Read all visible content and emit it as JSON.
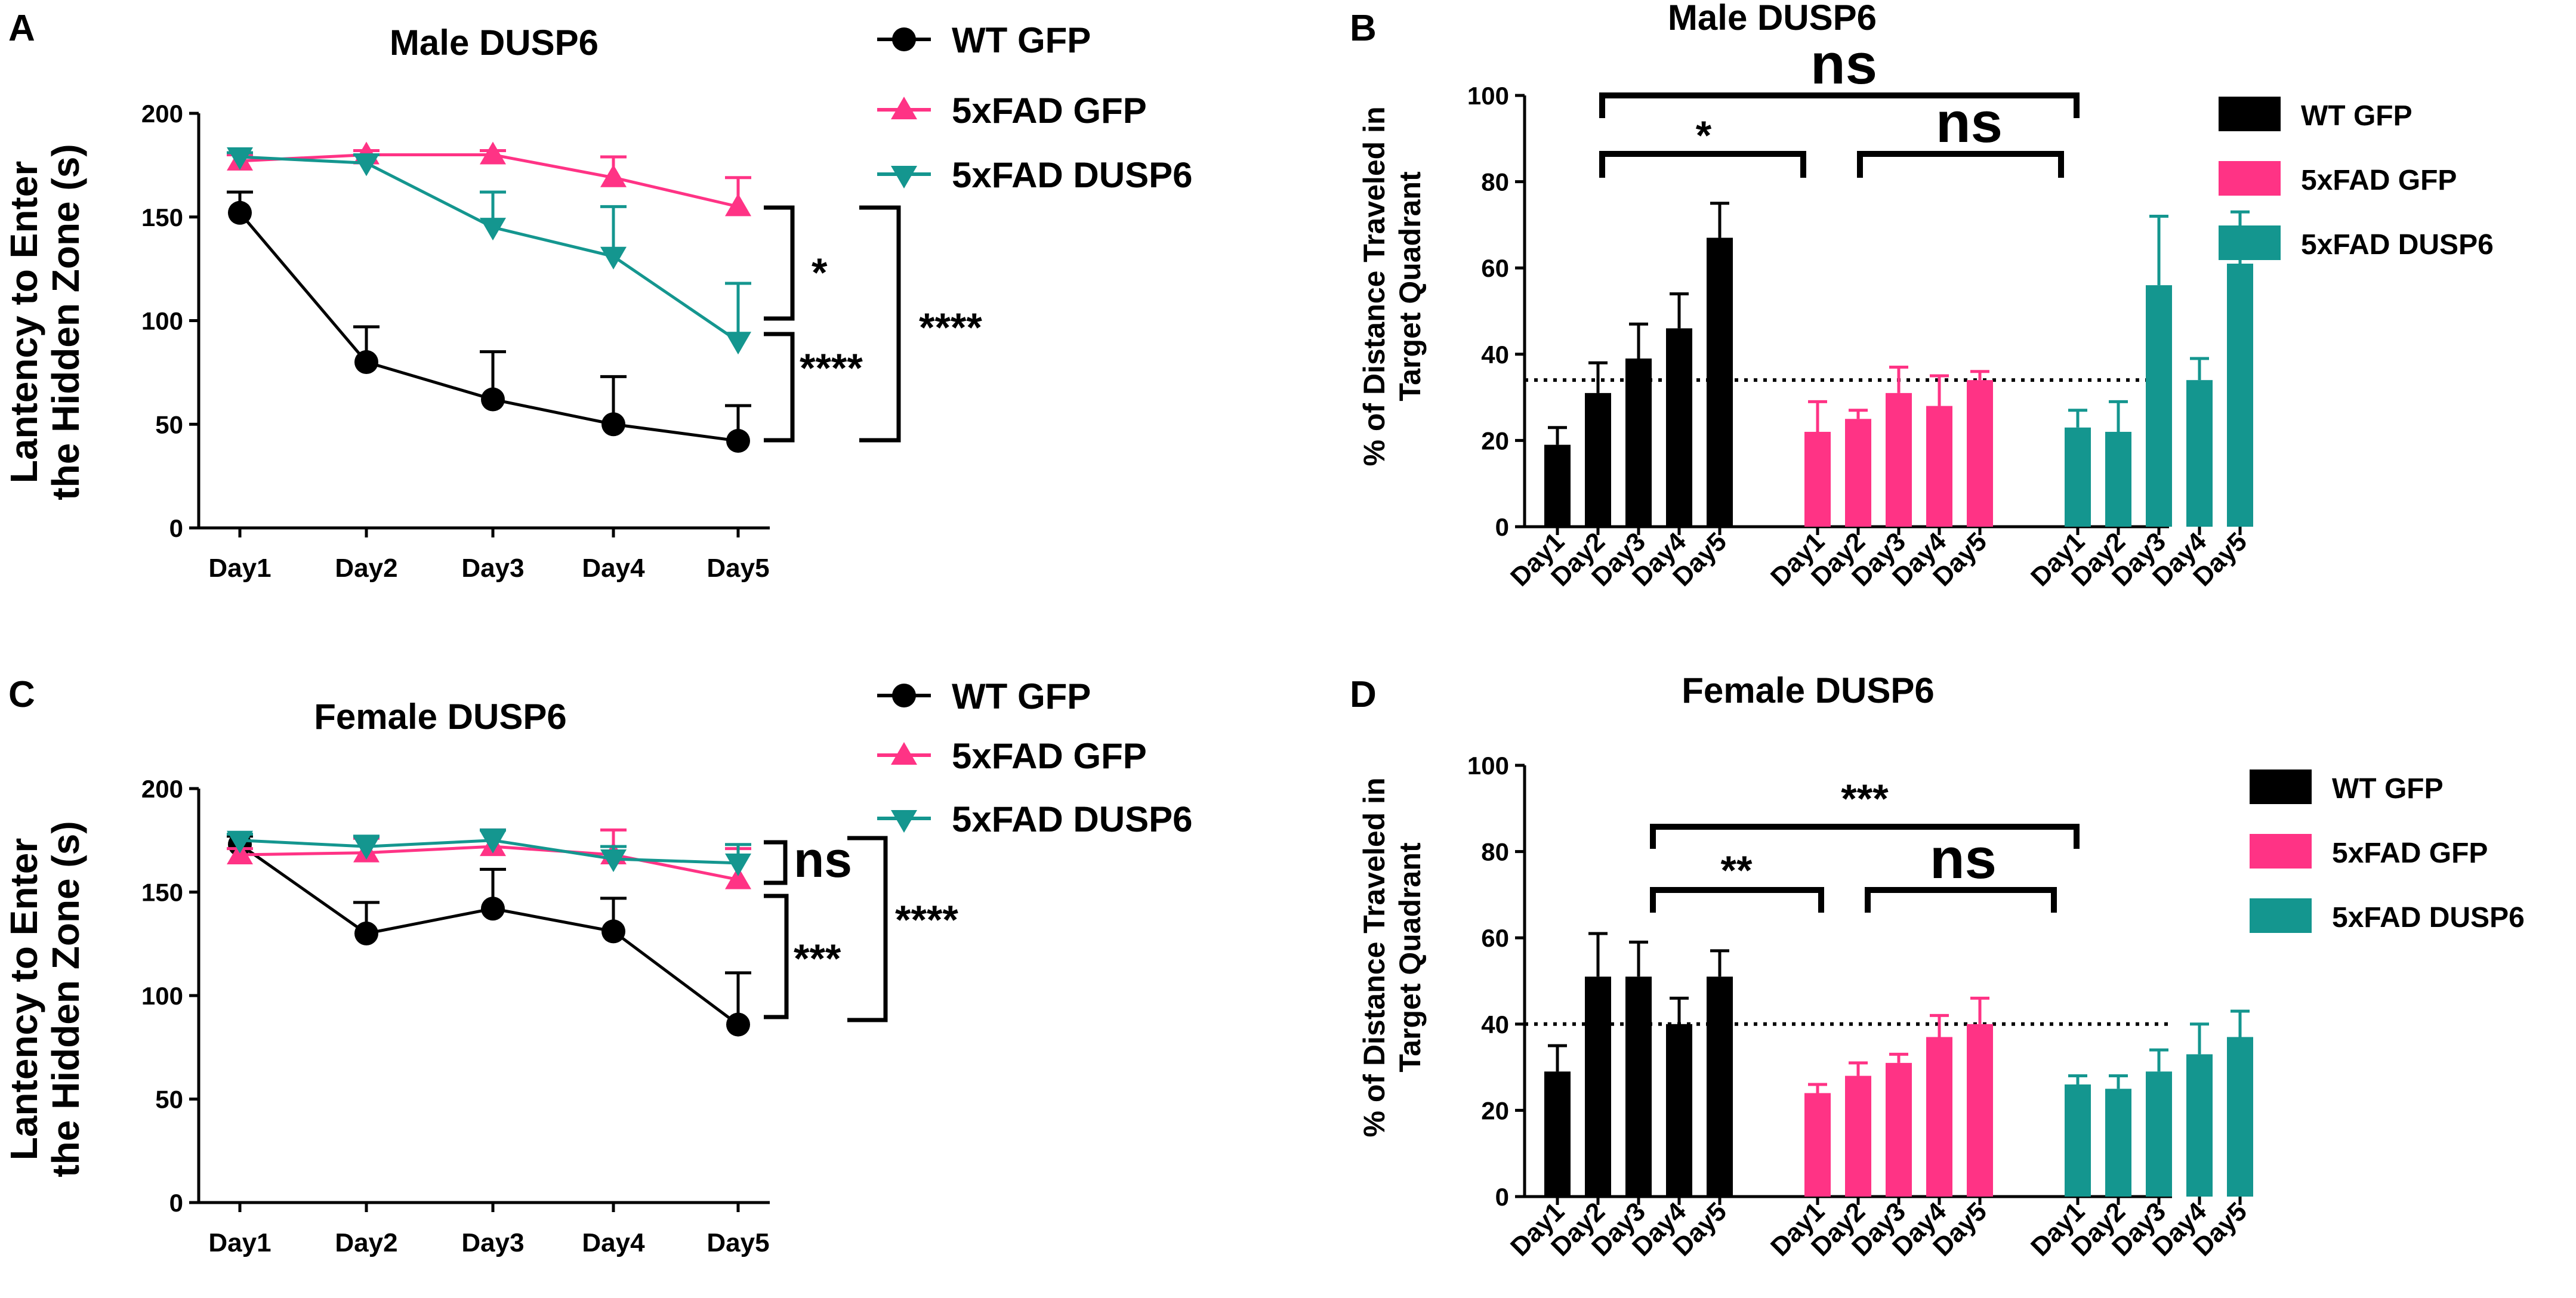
{
  "colors": {
    "wt": "#000000",
    "fadgfp": "#ff3385",
    "faddusp": "#14968f"
  },
  "chart_data": [
    {
      "panel": "A",
      "type": "line",
      "title": "Male DUSP6",
      "ylabel_line1": "Lantency to Enter",
      "ylabel_line2": "the Hidden Zone (s)",
      "categories": [
        "Day1",
        "Day2",
        "Day3",
        "Day4",
        "Day5"
      ],
      "ylim": [
        0,
        200
      ],
      "yticks": [
        0,
        50,
        100,
        150,
        200
      ],
      "series": [
        {
          "name": "WT GFP",
          "marker": "circle",
          "color": "#000000",
          "values": [
            152,
            80,
            62,
            50,
            42
          ],
          "err": [
            10,
            17,
            23,
            23,
            17
          ]
        },
        {
          "name": "5xFAD GFP",
          "marker": "triangle-up",
          "color": "#ff3385",
          "values": [
            177,
            180,
            180,
            169,
            155
          ],
          "err": [
            3,
            2,
            2,
            10,
            14
          ]
        },
        {
          "name": "5xFAD DUSP6",
          "marker": "triangle-down",
          "color": "#14968f",
          "values": [
            179,
            176,
            145,
            131,
            90
          ],
          "err": [
            2,
            4,
            17,
            24,
            28
          ]
        }
      ],
      "annotations": [
        "*",
        "****",
        "****"
      ]
    },
    {
      "panel": "B",
      "type": "bar",
      "title": "Male DUSP6",
      "ylabel_line1": "% of Distance Traveled in",
      "ylabel_line2": "Target Quadrant",
      "ylim": [
        0,
        100
      ],
      "yticks": [
        0,
        20,
        40,
        60,
        80,
        100
      ],
      "reference_line": 34,
      "categories": [
        "Day1",
        "Day2",
        "Day3",
        "Day4",
        "Day5"
      ],
      "series": [
        {
          "name": "WT GFP",
          "color": "#000000",
          "values": [
            19,
            31,
            39,
            46,
            67
          ],
          "err": [
            4,
            7,
            8,
            8,
            8
          ]
        },
        {
          "name": "5xFAD GFP",
          "color": "#ff3385",
          "values": [
            22,
            25,
            31,
            28,
            34
          ],
          "err": [
            7,
            2,
            6,
            7,
            2
          ]
        },
        {
          "name": "5xFAD DUSP6",
          "color": "#14968f",
          "values": [
            23,
            22,
            56,
            34,
            61
          ],
          "err": [
            4,
            7,
            16,
            5,
            12
          ]
        }
      ],
      "annotations": [
        "ns",
        "*",
        "ns"
      ]
    },
    {
      "panel": "C",
      "type": "line",
      "title": "Female DUSP6",
      "ylabel_line1": "Lantency to Enter",
      "ylabel_line2": "the Hidden Zone (s)",
      "categories": [
        "Day1",
        "Day2",
        "Day3",
        "Day4",
        "Day5"
      ],
      "ylim": [
        0,
        200
      ],
      "yticks": [
        0,
        50,
        100,
        150,
        200
      ],
      "series": [
        {
          "name": "WT GFP",
          "marker": "circle",
          "color": "#000000",
          "values": [
            173,
            130,
            142,
            131,
            86
          ],
          "err": [
            4,
            15,
            19,
            16,
            25
          ]
        },
        {
          "name": "5xFAD GFP",
          "marker": "triangle-up",
          "color": "#ff3385",
          "values": [
            168,
            169,
            172,
            168,
            156
          ],
          "err": [
            3,
            7,
            8,
            12,
            15
          ]
        },
        {
          "name": "5xFAD DUSP6",
          "marker": "triangle-down",
          "color": "#14968f",
          "values": [
            175,
            172,
            175,
            166,
            164
          ],
          "err": [
            3,
            5,
            5,
            6,
            9
          ]
        }
      ],
      "annotations": [
        "ns",
        "***",
        "****"
      ]
    },
    {
      "panel": "D",
      "type": "bar",
      "title": "Female DUSP6",
      "ylabel_line1": "% of Distance Traveled in",
      "ylabel_line2": "Target Quadrant",
      "ylim": [
        0,
        100
      ],
      "yticks": [
        0,
        20,
        40,
        60,
        80,
        100
      ],
      "reference_line": 40,
      "categories": [
        "Day1",
        "Day2",
        "Day3",
        "Day4",
        "Day5"
      ],
      "series": [
        {
          "name": "WT GFP",
          "color": "#000000",
          "values": [
            29,
            51,
            51,
            40,
            51
          ],
          "err": [
            6,
            10,
            8,
            6,
            6
          ]
        },
        {
          "name": "5xFAD GFP",
          "color": "#ff3385",
          "values": [
            24,
            28,
            31,
            37,
            40
          ],
          "err": [
            2,
            3,
            2,
            5,
            6
          ]
        },
        {
          "name": "5xFAD DUSP6",
          "color": "#14968f",
          "values": [
            26,
            25,
            29,
            33,
            37
          ],
          "err": [
            2,
            3,
            5,
            7,
            6
          ]
        }
      ],
      "annotations": [
        "***",
        "**",
        "ns"
      ]
    }
  ]
}
